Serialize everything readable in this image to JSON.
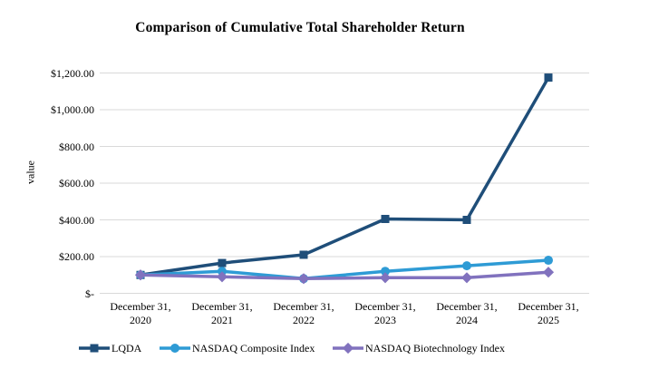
{
  "title": "Comparison of Cumulative Total Shareholder Return",
  "chart_data": {
    "type": "line",
    "title": "Comparison of Cumulative Total Shareholder Return",
    "xlabel": "",
    "ylabel": "value",
    "categories": [
      "December 31,\n2020",
      "December 31,\n2021",
      "December 31,\n2022",
      "December 31,\n2023",
      "December 31,\n2024",
      "December 31,\n2025"
    ],
    "series": [
      {
        "name": "LQDA",
        "marker": "square",
        "color": "#1F4E79",
        "values": [
          100,
          165,
          210,
          405,
          400,
          1175
        ]
      },
      {
        "name": "NASDAQ Composite Index",
        "marker": "circle",
        "color": "#2E9BD5",
        "values": [
          100,
          120,
          80,
          120,
          150,
          180
        ]
      },
      {
        "name": "NASDAQ Biotechnology Index",
        "marker": "diamond",
        "color": "#8172BE",
        "values": [
          100,
          90,
          80,
          85,
          85,
          115
        ]
      }
    ],
    "y_ticks": [
      {
        "value": 0,
        "label": "$-"
      },
      {
        "value": 200,
        "label": "$200.00"
      },
      {
        "value": 400,
        "label": "$400.00"
      },
      {
        "value": 600,
        "label": "$600.00"
      },
      {
        "value": 800,
        "label": "$800.00"
      },
      {
        "value": 1000,
        "label": "$1,000.00"
      },
      {
        "value": 1200,
        "label": "$1,200.00"
      }
    ],
    "ylim": [
      0,
      1200
    ],
    "grid": true,
    "gridline_color": "#D9D9D9",
    "legend_position": "bottom"
  }
}
